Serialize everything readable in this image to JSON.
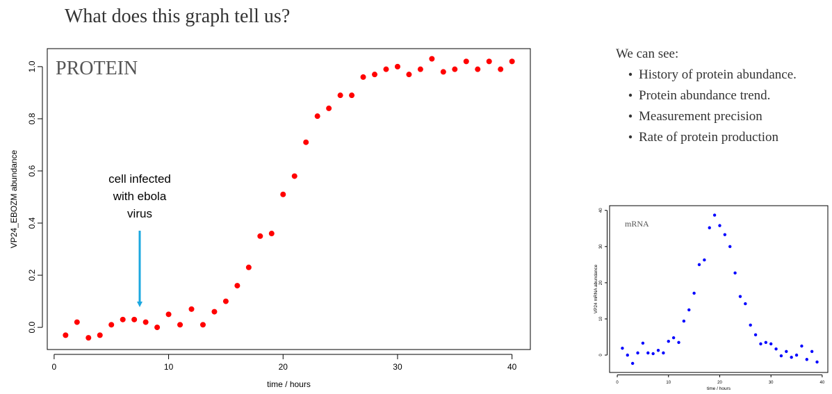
{
  "title": "What does this graph tell us?",
  "notes": {
    "heading": "We can see:",
    "bullets": [
      "History of protein abundance.",
      "Protein abundance trend.",
      "Measurement precision",
      "Rate of protein production"
    ]
  },
  "chart_data": [
    {
      "type": "scatter",
      "label": "PROTEIN",
      "annotation": [
        "cell infected",
        "with ebola",
        "virus"
      ],
      "x_label": "time / hours",
      "y_label": "VP24_EBOZM abundance",
      "color": "#ff0000",
      "x": [
        1,
        2,
        3,
        4,
        5,
        6,
        7,
        8,
        9,
        10,
        11,
        12,
        13,
        14,
        15,
        16,
        17,
        18,
        19,
        20,
        21,
        22,
        23,
        24,
        25,
        26,
        27,
        28,
        29,
        30,
        31,
        32,
        33,
        34,
        35,
        36,
        37,
        38,
        39,
        40
      ],
      "values": [
        -0.03,
        0.02,
        -0.04,
        -0.03,
        0.01,
        0.03,
        0.03,
        0.02,
        0.0,
        0.05,
        0.01,
        0.07,
        0.01,
        0.06,
        0.1,
        0.16,
        0.23,
        0.35,
        0.36,
        0.51,
        0.58,
        0.71,
        0.81,
        0.84,
        0.89,
        0.89,
        0.96,
        0.97,
        0.99,
        1.0,
        0.97,
        0.99,
        1.03,
        0.98,
        0.99,
        1.02,
        0.99,
        1.02,
        0.99,
        1.02
      ],
      "xlim": [
        -0.6,
        41.6
      ],
      "ylim": [
        -0.085,
        1.069
      ],
      "xticks": [
        0,
        10,
        20,
        30,
        40
      ],
      "yticks": [
        {
          "value": 0,
          "label": "0.0"
        },
        0.2,
        0.4,
        0.6,
        0.8,
        {
          "value": 1,
          "label": "1.0"
        }
      ],
      "grid": false
    },
    {
      "type": "scatter",
      "label": "mRNA",
      "x_label": "time / hours",
      "y_label": "VP24 mRNA abundance",
      "color": "#0000ff",
      "x": [
        1,
        2,
        3,
        4,
        5,
        6,
        7,
        8,
        9,
        10,
        11,
        12,
        13,
        14,
        15,
        16,
        17,
        18,
        19,
        20,
        21,
        22,
        23,
        24,
        25,
        26,
        27,
        28,
        29,
        30,
        31,
        32,
        33,
        34,
        35,
        36,
        37,
        38,
        39
      ],
      "values": [
        1.9,
        0,
        -2.3,
        0.6,
        3.3,
        0.6,
        0.4,
        1.3,
        0.6,
        3.8,
        4.8,
        3.5,
        9.4,
        12.5,
        17.1,
        25,
        26.3,
        35.2,
        38.7,
        35.8,
        33.3,
        30,
        22.7,
        16.2,
        14.2,
        8.3,
        5.6,
        3.1,
        3.5,
        3.1,
        1.7,
        -0.2,
        1,
        -0.6,
        0,
        2.5,
        -1.2,
        1,
        -1.9
      ],
      "xlim": [
        -1.5,
        41.1
      ],
      "ylim": [
        -4.8,
        41.3
      ],
      "xticks": [
        0,
        10,
        20,
        30,
        40
      ],
      "yticks": [
        0,
        10,
        20,
        30,
        40
      ],
      "grid": false
    }
  ]
}
